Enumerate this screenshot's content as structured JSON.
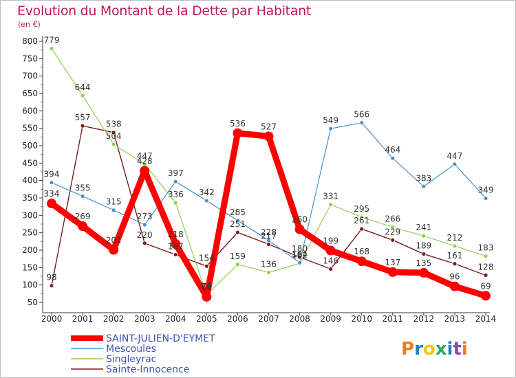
{
  "chart_data": {
    "type": "line",
    "title": "Evolution du Montant de la Dette par Habitant",
    "subtitle": "(en €)",
    "xlabel": "",
    "ylabel": "",
    "x": [
      "2000",
      "2001",
      "2002",
      "2003",
      "2004",
      "2005",
      "2006",
      "2007",
      "2008",
      "2009",
      "2010",
      "2011",
      "2012",
      "2013",
      "2014"
    ],
    "yticks": [
      50,
      100,
      150,
      200,
      250,
      300,
      350,
      400,
      450,
      500,
      550,
      600,
      650,
      700,
      750,
      800
    ],
    "ylim": [
      50,
      800
    ],
    "grid": false,
    "legend_position": "bottom-left",
    "series": [
      {
        "name": "SAINT-JULIEN-D'EYMET",
        "color": "#ff0000",
        "values": [
          334,
          269,
          201,
          428,
          218,
          66,
          536,
          527,
          260,
          199,
          168,
          137,
          135,
          96,
          69
        ]
      },
      {
        "name": "Mescoules",
        "color": "#4a90c8",
        "values": [
          394,
          355,
          315,
          273,
          397,
          342,
          285,
          228,
          164,
          549,
          566,
          464,
          383,
          447,
          349
        ]
      },
      {
        "name": "Singleyrac",
        "color": "#8fd14f",
        "values": [
          779,
          644,
          504,
          447,
          336,
          72,
          159,
          136,
          162,
          331,
          295,
          266,
          241,
          212,
          183
        ]
      },
      {
        "name": "Sainte-Innocence",
        "color": "#7a1c1c",
        "values": [
          98,
          557,
          538,
          220,
          187,
          154,
          251,
          217,
          180,
          146,
          261,
          229,
          189,
          161,
          128
        ]
      }
    ]
  },
  "logo": {
    "text": "Proxiti"
  }
}
